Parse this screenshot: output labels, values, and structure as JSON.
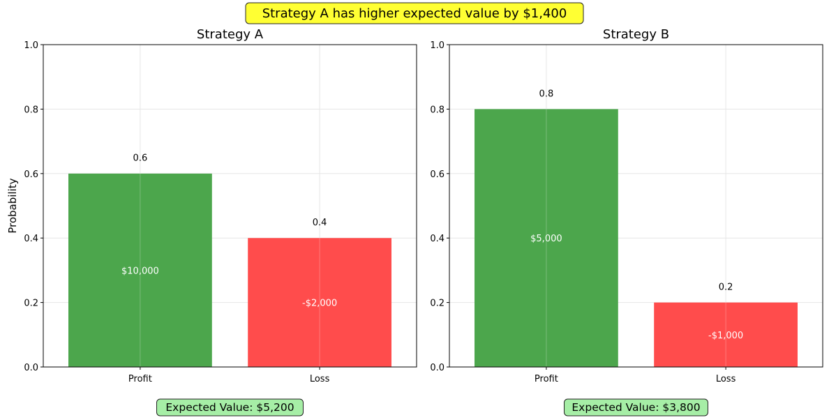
{
  "suptitle": "Strategy A has higher expected value by $1,400",
  "colors": {
    "profit": "#4ca64c",
    "loss": "#ff4c4c",
    "suptitle_box": "#ffff33",
    "ev_box": "#a6eea6",
    "grid": "#e6e6e6"
  },
  "chart_data": [
    {
      "type": "bar",
      "title": "Strategy A",
      "ylabel": "Probability",
      "ylim": [
        0,
        1
      ],
      "yticks": [
        "0.0",
        "0.2",
        "0.4",
        "0.6",
        "0.8",
        "1.0"
      ],
      "categories": [
        "Profit",
        "Loss"
      ],
      "values": [
        0.6,
        0.4
      ],
      "value_labels": [
        "0.6",
        "0.4"
      ],
      "outcome_labels": [
        "$10,000",
        "-$2,000"
      ],
      "bar_colors": [
        "#4ca64c",
        "#ff4c4c"
      ],
      "grid": true,
      "expected_value_text": "Expected Value: $5,200"
    },
    {
      "type": "bar",
      "title": "Strategy B",
      "ylabel": "",
      "ylim": [
        0,
        1
      ],
      "yticks": [
        "0.0",
        "0.2",
        "0.4",
        "0.6",
        "0.8",
        "1.0"
      ],
      "categories": [
        "Profit",
        "Loss"
      ],
      "values": [
        0.8,
        0.2
      ],
      "value_labels": [
        "0.8",
        "0.2"
      ],
      "outcome_labels": [
        "$5,000",
        "-$1,000"
      ],
      "bar_colors": [
        "#4ca64c",
        "#ff4c4c"
      ],
      "grid": true,
      "expected_value_text": "Expected Value: $3,800"
    }
  ]
}
